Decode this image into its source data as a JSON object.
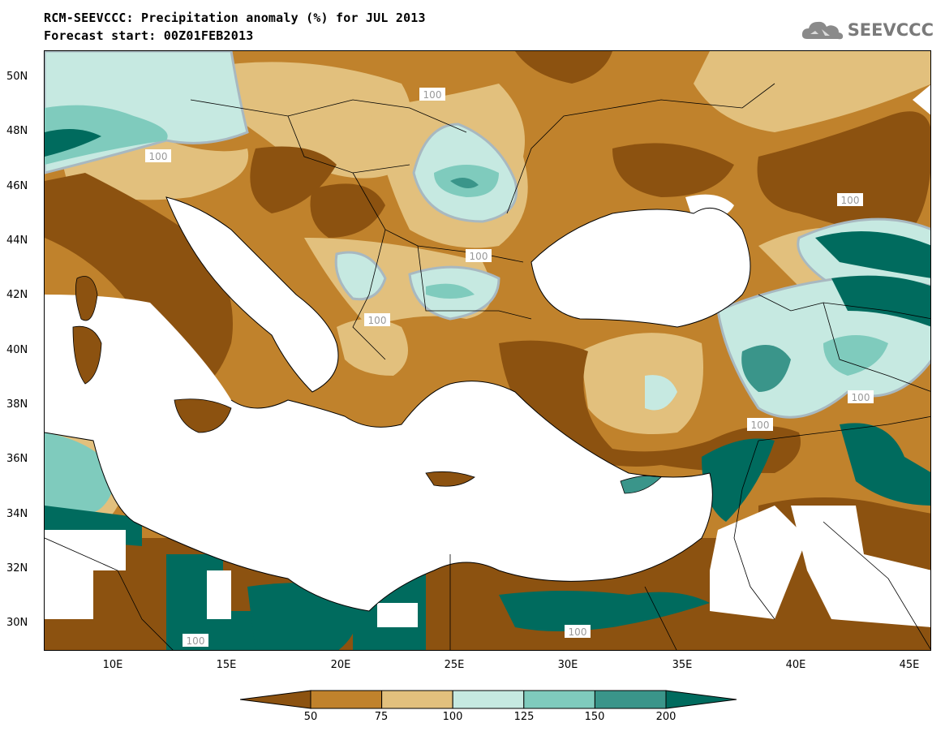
{
  "header": {
    "title": "RCM-SEEVCCC: Precipitation anomaly (%) for JUL 2013",
    "subtitle": "Forecast start: 00Z01FEB2013"
  },
  "logo": {
    "text": "SEEVCCC",
    "icon": "cloud-icon"
  },
  "axes": {
    "lat_labels": [
      "50N",
      "48N",
      "46N",
      "44N",
      "42N",
      "40N",
      "38N",
      "36N",
      "34N",
      "32N",
      "30N"
    ],
    "lon_labels": [
      "10E",
      "15E",
      "20E",
      "25E",
      "30E",
      "35E",
      "40E",
      "45E"
    ]
  },
  "contour_label": "100",
  "colorbar": {
    "ticks": [
      "50",
      "75",
      "100",
      "125",
      "150",
      "200"
    ],
    "colors": [
      "#8c5210",
      "#c0822c",
      "#e2c07d",
      "#c6e9e1",
      "#7fcbbd",
      "#3a958a",
      "#006b5e"
    ]
  },
  "palette": {
    "very_dry": "#8c5210",
    "dry": "#c0822c",
    "slightly_dry": "#e2c07d",
    "slightly_wet": "#c6e9e1",
    "wet": "#7fcbbd",
    "very_wet": "#3a958a",
    "extreme_wet": "#006b5e",
    "sea": "#ffffff",
    "contour": "#a8b8c0"
  }
}
